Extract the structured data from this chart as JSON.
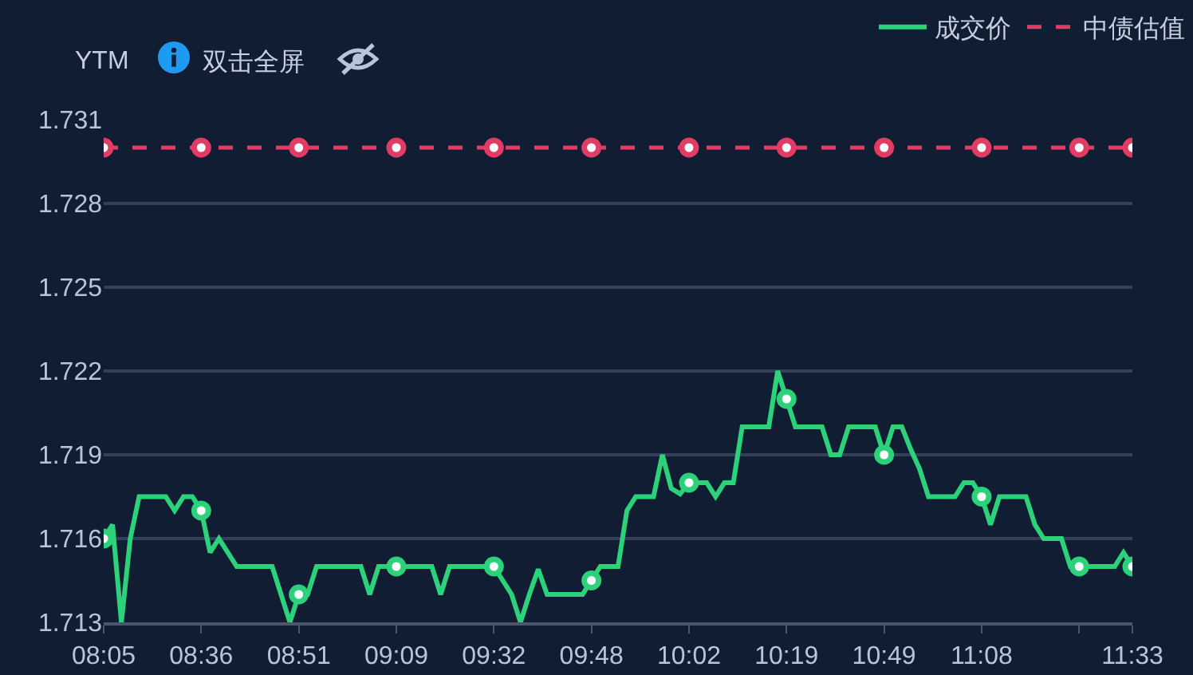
{
  "chart_data": {
    "type": "line",
    "ylabel": "YTM",
    "annotations": [
      "双击全屏"
    ],
    "categories": [
      "08:05",
      null,
      null,
      null,
      null,
      null,
      null,
      null,
      null,
      null,
      null,
      "08:36",
      null,
      null,
      null,
      null,
      null,
      null,
      null,
      null,
      null,
      null,
      "08:51",
      null,
      null,
      null,
      null,
      null,
      null,
      null,
      null,
      null,
      null,
      "09:09",
      null,
      null,
      null,
      null,
      null,
      null,
      null,
      null,
      null,
      null,
      "09:32",
      null,
      null,
      null,
      null,
      null,
      null,
      null,
      null,
      null,
      null,
      "09:48",
      null,
      null,
      null,
      null,
      null,
      null,
      null,
      null,
      null,
      null,
      "10:02",
      null,
      null,
      null,
      null,
      null,
      null,
      null,
      null,
      null,
      null,
      "10:19",
      null,
      null,
      null,
      null,
      null,
      null,
      null,
      null,
      null,
      null,
      "10:49",
      null,
      null,
      null,
      null,
      null,
      null,
      null,
      null,
      null,
      null,
      "11:08",
      null,
      null,
      null,
      null,
      null,
      null,
      null,
      null,
      null,
      null,
      null,
      null,
      null,
      null,
      null,
      null,
      "11:33"
    ],
    "series": [
      {
        "name": "成交价",
        "color": "#2bd27a",
        "line_style": "solid",
        "values": [
          1.716,
          1.7165,
          1.713,
          1.716,
          1.7175,
          1.7175,
          1.7175,
          1.7175,
          1.717,
          1.7175,
          1.7175,
          1.717,
          1.7155,
          1.716,
          1.7155,
          1.715,
          1.715,
          1.715,
          1.715,
          1.715,
          1.714,
          1.713,
          1.714,
          1.714,
          1.715,
          1.715,
          1.715,
          1.715,
          1.715,
          1.715,
          1.714,
          1.715,
          1.715,
          1.715,
          1.715,
          1.715,
          1.715,
          1.715,
          1.714,
          1.715,
          1.715,
          1.715,
          1.715,
          1.715,
          1.715,
          1.7145,
          1.714,
          1.713,
          1.714,
          1.7149,
          1.714,
          1.714,
          1.714,
          1.714,
          1.714,
          1.7145,
          1.715,
          1.715,
          1.715,
          1.717,
          1.7175,
          1.7175,
          1.7175,
          1.719,
          1.7178,
          1.7176,
          1.718,
          1.718,
          1.718,
          1.7175,
          1.718,
          1.718,
          1.72,
          1.72,
          1.72,
          1.72,
          1.722,
          1.721,
          1.72,
          1.72,
          1.72,
          1.72,
          1.719,
          1.719,
          1.72,
          1.72,
          1.72,
          1.72,
          1.719,
          1.72,
          1.72,
          1.7192,
          1.7185,
          1.7175,
          1.7175,
          1.7175,
          1.7175,
          1.718,
          1.718,
          1.7175,
          1.7165,
          1.7175,
          1.7175,
          1.7175,
          1.7175,
          1.7165,
          1.716,
          1.716,
          1.716,
          1.715,
          1.715,
          1.715,
          1.715,
          1.715,
          1.715,
          1.7155,
          1.715
        ]
      },
      {
        "name": "中债估值",
        "color": "#e23c64",
        "line_style": "dashed",
        "values": [
          1.73,
          1.73,
          1.73,
          1.73,
          1.73,
          1.73,
          1.73,
          1.73,
          1.73,
          1.73,
          1.73,
          1.73,
          1.73,
          1.73,
          1.73,
          1.73,
          1.73,
          1.73,
          1.73,
          1.73,
          1.73,
          1.73,
          1.73,
          1.73,
          1.73,
          1.73,
          1.73,
          1.73,
          1.73,
          1.73,
          1.73,
          1.73,
          1.73,
          1.73,
          1.73,
          1.73,
          1.73,
          1.73,
          1.73,
          1.73,
          1.73,
          1.73,
          1.73,
          1.73,
          1.73,
          1.73,
          1.73,
          1.73,
          1.73,
          1.73,
          1.73,
          1.73,
          1.73,
          1.73,
          1.73,
          1.73,
          1.73,
          1.73,
          1.73,
          1.73,
          1.73,
          1.73,
          1.73,
          1.73,
          1.73,
          1.73,
          1.73,
          1.73,
          1.73,
          1.73,
          1.73,
          1.73,
          1.73,
          1.73,
          1.73,
          1.73,
          1.73,
          1.73,
          1.73,
          1.73,
          1.73,
          1.73,
          1.73,
          1.73,
          1.73,
          1.73,
          1.73,
          1.73,
          1.73,
          1.73,
          1.73,
          1.73,
          1.73,
          1.73,
          1.73,
          1.73,
          1.73,
          1.73,
          1.73,
          1.73,
          1.73,
          1.73,
          1.73,
          1.73,
          1.73,
          1.73,
          1.73,
          1.73,
          1.73,
          1.73,
          1.73,
          1.73,
          1.73,
          1.73,
          1.73,
          1.73,
          1.73
        ]
      }
    ],
    "ylim": [
      1.713,
      1.731
    ],
    "yticks": [
      1.713,
      1.716,
      1.719,
      1.722,
      1.725,
      1.728,
      1.731
    ],
    "grid": "y",
    "legend": "top right"
  }
}
